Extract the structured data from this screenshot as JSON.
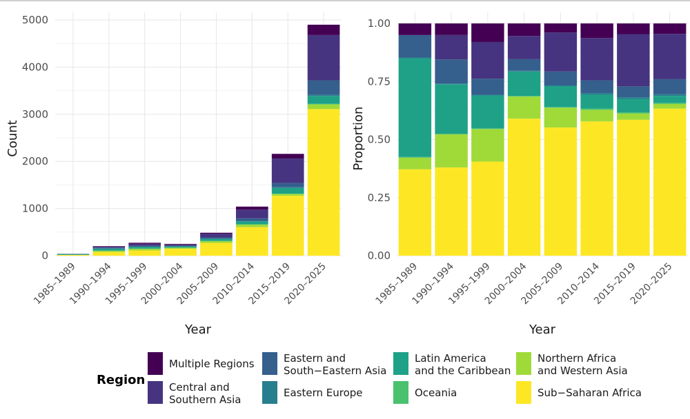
{
  "legend": {
    "title": "Region",
    "items": [
      {
        "label": "Multiple Regions",
        "color": "#440154"
      },
      {
        "label": "Central and Southern Asia",
        "color": "#463480"
      },
      {
        "label": "Eastern and South−Eastern Asia",
        "color": "#355f8d"
      },
      {
        "label": "Eastern Europe",
        "color": "#277f8e"
      },
      {
        "label": "Latin America and the Caribbean",
        "color": "#1fa187"
      },
      {
        "label": "Oceania",
        "color": "#4ac16d"
      },
      {
        "label": "Northern Africa and Western Asia",
        "color": "#a0da39"
      },
      {
        "label": "Sub−Saharan Africa",
        "color": "#fde725"
      }
    ]
  },
  "chart_data": [
    {
      "type": "bar",
      "stacked": true,
      "xlabel": "Year",
      "ylabel": "Count",
      "ylim": [
        0,
        5000
      ],
      "yticks": [
        0,
        1000,
        2000,
        3000,
        4000,
        5000
      ],
      "categories": [
        "1985–1989",
        "1990–1994",
        "1995–1999",
        "2000–2004",
        "2005–2009",
        "2010–2014",
        "2015–2019",
        "2020–2025"
      ],
      "series": [
        {
          "name": "Sub−Saharan Africa",
          "values": [
            15,
            77,
            110,
            145,
            270,
            605,
            1270,
            3110
          ]
        },
        {
          "name": "Northern Africa and Western Asia",
          "values": [
            2,
            28,
            38,
            24,
            40,
            55,
            40,
            100
          ]
        },
        {
          "name": "Oceania",
          "values": [
            0,
            1,
            1,
            1,
            2,
            5,
            5,
            10
          ]
        },
        {
          "name": "Latin America and the Caribbean",
          "values": [
            17,
            43,
            40,
            28,
            45,
            63,
            120,
            170
          ]
        },
        {
          "name": "Eastern Europe",
          "values": [
            0,
            1,
            1,
            1,
            2,
            10,
            15,
            20
          ]
        },
        {
          "name": "Eastern and South−Eastern Asia",
          "values": [
            4,
            22,
            20,
            12,
            28,
            55,
            90,
            310
          ]
        },
        {
          "name": "Central and Southern Asia",
          "values": [
            0,
            21,
            42,
            26,
            80,
            185,
            520,
            960
          ]
        },
        {
          "name": "Multiple Regions",
          "values": [
            2,
            10,
            22,
            13,
            19,
            63,
            100,
            220
          ]
        }
      ]
    },
    {
      "type": "bar",
      "stacked": true,
      "xlabel": "Year",
      "ylabel": "Proportion",
      "ylim": [
        0,
        1
      ],
      "yticks": [
        0,
        0.25,
        0.5,
        0.75,
        1
      ],
      "ytick_labels": [
        "0.00",
        "0.25",
        "0.50",
        "0.75",
        "1.00"
      ],
      "categories": [
        "1985–1989",
        "1990–1994",
        "1995–1999",
        "2000–2004",
        "2005–2009",
        "2010–2014",
        "2015–2019",
        "2020–2025"
      ],
      "series": [
        {
          "name": "Sub−Saharan Africa",
          "values": [
            0.372,
            0.38,
            0.405,
            0.59,
            0.552,
            0.578,
            0.585,
            0.633
          ]
        },
        {
          "name": "Northern Africa and Western Asia",
          "values": [
            0.05,
            0.142,
            0.14,
            0.095,
            0.085,
            0.05,
            0.027,
            0.02
          ]
        },
        {
          "name": "Oceania",
          "values": [
            0.003,
            0.003,
            0.003,
            0.003,
            0.003,
            0.005,
            0.005,
            0.005
          ]
        },
        {
          "name": "Latin America and the Caribbean",
          "values": [
            0.425,
            0.213,
            0.142,
            0.105,
            0.09,
            0.06,
            0.058,
            0.03
          ]
        },
        {
          "name": "Eastern Europe",
          "values": [
            0.003,
            0.003,
            0.003,
            0.003,
            0.003,
            0.007,
            0.007,
            0.007
          ]
        },
        {
          "name": "Eastern and South−Eastern Asia",
          "values": [
            0.097,
            0.104,
            0.069,
            0.05,
            0.06,
            0.055,
            0.047,
            0.065
          ]
        },
        {
          "name": "Central and Southern Asia",
          "values": [
            0.0,
            0.105,
            0.158,
            0.1,
            0.168,
            0.182,
            0.225,
            0.195
          ]
        },
        {
          "name": "Multiple Regions",
          "values": [
            0.05,
            0.05,
            0.08,
            0.054,
            0.039,
            0.063,
            0.046,
            0.045
          ]
        }
      ]
    }
  ]
}
